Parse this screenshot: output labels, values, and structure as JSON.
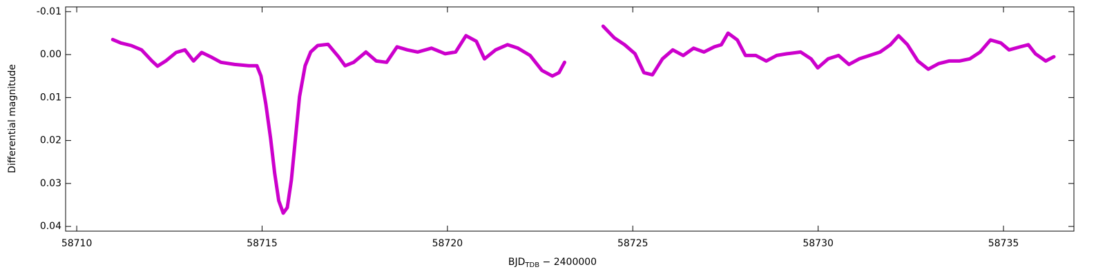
{
  "chart_data": {
    "type": "line",
    "x_label": {
      "main": "BJD",
      "sub": "TDB",
      "suffix": " − 2400000"
    },
    "y_label": "Differential magnitude",
    "xlim": [
      58709.7,
      58736.9
    ],
    "ylim": [
      -0.0111,
      0.0411
    ],
    "y_inverted": true,
    "xticks": [
      58710,
      58715,
      58720,
      58725,
      58730,
      58735
    ],
    "yticks": [
      {
        "value": -0.01,
        "label": "-0.01"
      },
      {
        "value": 0,
        "label": "0.00"
      },
      {
        "value": 0.01,
        "label": "0.01"
      },
      {
        "value": 0.02,
        "label": "0.02"
      },
      {
        "value": 0.03,
        "label": "0.03"
      },
      {
        "value": 0.04,
        "label": "0.04"
      }
    ],
    "x": [
      58710.97,
      58711.19,
      58711.47,
      58711.75,
      58712.03,
      58712.18,
      58712.4,
      58712.68,
      58712.92,
      58713.15,
      58713.37,
      58713.61,
      58713.89,
      58714.26,
      58714.64,
      58714.86,
      58714.97,
      58715.1,
      58715.23,
      58715.34,
      58715.45,
      58715.57,
      58715.68,
      58715.79,
      58715.9,
      58716.01,
      58716.16,
      58716.31,
      58716.5,
      58716.78,
      58717.06,
      58717.24,
      58717.47,
      58717.8,
      58718.08,
      58718.36,
      58718.64,
      58718.92,
      58719.2,
      58719.57,
      58719.94,
      58720.22,
      58720.5,
      58720.78,
      58721.0,
      58721.3,
      58721.62,
      58721.9,
      58722.23,
      58722.55,
      58722.83,
      58723.01,
      58723.16,
      58723.7,
      58724.2,
      58724.5,
      58724.78,
      58725.06,
      58725.3,
      58725.53,
      58725.8,
      58726.08,
      58726.36,
      58726.64,
      58726.92,
      58727.2,
      58727.39,
      58727.57,
      58727.82,
      58728.04,
      58728.32,
      58728.6,
      58728.88,
      58729.16,
      58729.53,
      58729.81,
      58729.99,
      58730.27,
      58730.55,
      58730.83,
      58731.11,
      58731.39,
      58731.67,
      58731.95,
      58732.17,
      58732.41,
      58732.69,
      58732.97,
      58733.25,
      58733.53,
      58733.81,
      58734.09,
      58734.37,
      58734.65,
      58734.93,
      58735.15,
      58735.45,
      58735.67,
      58735.86,
      58736.14,
      58736.36
    ],
    "series": [
      {
        "color": "#cc00cc",
        "values": [
          -0.0035,
          -0.0027,
          -0.0021,
          -0.0011,
          0.0015,
          0.0027,
          0.0015,
          -0.0005,
          -0.0011,
          0.0015,
          -0.0005,
          0.0005,
          0.0018,
          0.0023,
          0.0026,
          0.0026,
          0.005,
          0.0115,
          0.0195,
          0.0276,
          0.034,
          0.0369,
          0.0356,
          0.0292,
          0.0195,
          0.0098,
          0.0026,
          -0.0006,
          -0.0021,
          -0.0024,
          0.0005,
          0.0026,
          0.0018,
          -0.0006,
          0.0015,
          0.0018,
          -0.0018,
          -0.0011,
          -0.0006,
          -0.0015,
          -0.0002,
          -0.0006,
          -0.0044,
          -0.0031,
          0.001,
          -0.0011,
          -0.0023,
          -0.0015,
          0.0002,
          0.0037,
          0.005,
          0.0042,
          0.0018,
          null,
          -0.0066,
          -0.0039,
          -0.0023,
          -0.0002,
          0.0042,
          0.0047,
          0.001,
          -0.0011,
          0.0002,
          -0.0015,
          -0.0006,
          -0.0018,
          -0.0023,
          -0.005,
          -0.0034,
          0.0002,
          0.0002,
          0.0015,
          0.0002,
          -0.0002,
          -0.0006,
          0.001,
          0.0031,
          0.001,
          0.0002,
          0.0023,
          0.001,
          0.0002,
          -0.0006,
          -0.0023,
          -0.0044,
          -0.0023,
          0.0015,
          0.0034,
          0.0021,
          0.0015,
          0.0015,
          0.001,
          -0.0006,
          -0.0034,
          -0.0027,
          -0.0011,
          -0.0018,
          -0.0023,
          -0.0002,
          0.0015,
          0.0005
        ]
      }
    ]
  }
}
